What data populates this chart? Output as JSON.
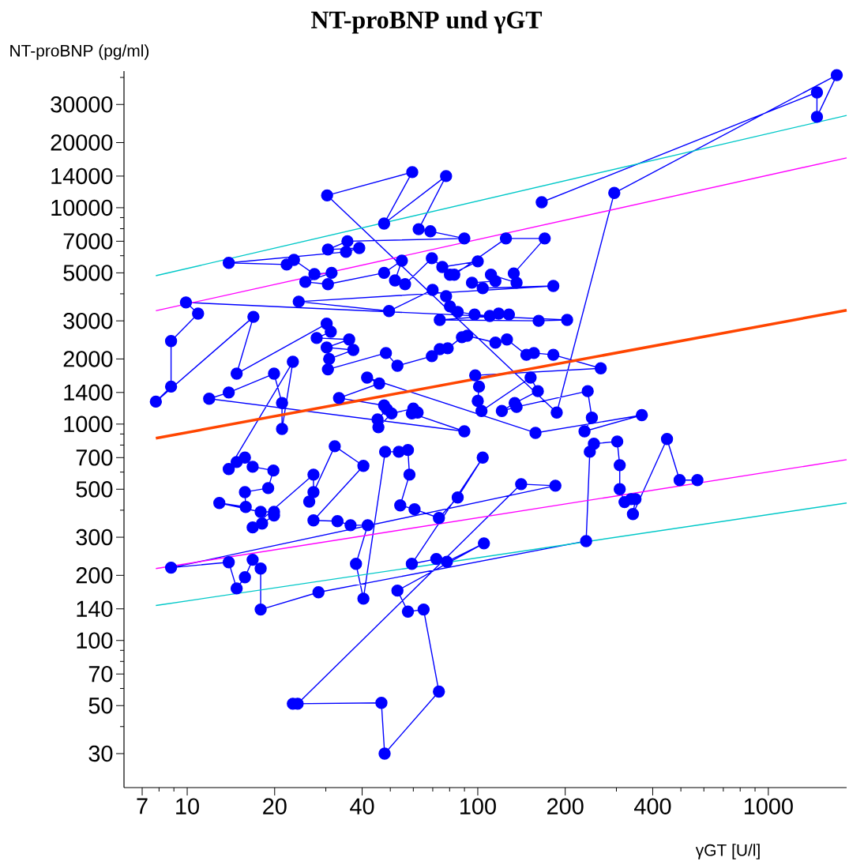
{
  "chart_data": {
    "type": "line",
    "title": "**NT-proBNP und γGT**",
    "xlabel": "γGT [U/l]",
    "ylabel": "NT-proBNP (pg/ml)",
    "log": "xy",
    "xlim": [
      6.06,
      1860
    ],
    "ylim": [
      20.9,
      42800
    ],
    "xticks": [
      7,
      10,
      20,
      40,
      100,
      200,
      400,
      1000
    ],
    "yticks": [
      30,
      50,
      70,
      100,
      140,
      200,
      300,
      500,
      700,
      1000,
      1400,
      2000,
      3000,
      5000,
      7000,
      10000,
      14000,
      20000,
      30000
    ],
    "series": [
      {
        "marker": "circle",
        "color": "#0000ff",
        "x": [
          166,
          1470,
          1470,
          1720,
          295,
          187,
          30.3,
          59.5,
          47.6,
          77.8,
          62.6,
          68.7,
          89.9,
          35.6,
          30.5,
          39.1,
          35.2,
          13.9,
          22.0,
          23.3,
          27.4,
          31.4,
          25.5,
          30.5,
          47.6,
          54.8,
          51.9,
          56.2,
          69.5,
          75.5,
          100,
          80.2,
          83,
          125,
          170,
          133,
          136,
          111,
          115,
          95.5,
          104,
          182,
          24.2,
          49.5,
          69.9,
          77.8,
          80.2,
          85.3,
          97.5,
          110,
          118,
          128,
          74,
          162,
          203,
          9.9,
          10.9,
          8.8,
          8.8,
          7.8,
          16.9,
          14.8,
          30.2,
          31.2,
          27.9,
          36.1,
          30.2,
          37.3,
          30.8,
          30.5,
          48.3,
          52.9,
          69.5,
          74,
          78.8,
          88.2,
          92,
          115,
          126,
          147,
          156,
          182,
          265,
          98,
          101,
          100,
          103,
          152,
          161,
          134,
          121,
          136,
          239,
          247,
          233,
          367,
          158,
          41.6,
          45.8,
          33.3,
          47.6,
          48.7,
          45.2,
          45.5,
          50.5,
          60,
          62.1,
          59.3,
          89.9,
          11.9,
          13.9,
          19.9,
          21.2,
          21.2,
          23.1,
          13.9,
          14.8,
          15.8,
          16.8,
          19.8,
          19.0,
          15.8,
          15.9,
          12.9,
          17.9,
          19.9,
          19.9,
          18.1,
          16.8,
          27.2,
          27.2,
          26.3,
          32.2,
          40.4,
          27.2,
          32.9,
          36.5,
          41.8,
          38.1,
          40.4,
          48,
          53.5,
          57.5,
          58.2,
          54.1,
          60.6,
          73.5,
          85.3,
          104,
          59.3,
          72,
          78.3,
          105,
          52.9,
          57.5,
          65.1,
          73.5,
          47.8,
          46.6,
          23.1,
          24,
          141,
          185,
          8.8,
          13.9,
          14.8,
          15.8,
          16.8,
          17.9,
          17.9,
          28.3,
          236,
          243,
          251,
          302,
          308,
          308,
          320,
          337,
          349,
          342,
          448,
          495,
          570
        ],
        "values": [
          10600,
          34100,
          26300,
          41000,
          11700,
          1130,
          11400,
          14600,
          8450,
          14000,
          7960,
          7780,
          7210,
          7000,
          6410,
          6510,
          6250,
          5560,
          5460,
          5740,
          4930,
          5000,
          4540,
          4430,
          5000,
          5690,
          4610,
          4430,
          5840,
          5320,
          5650,
          4900,
          4900,
          7210,
          7210,
          4970,
          4500,
          4900,
          4580,
          4500,
          4250,
          4350,
          3680,
          3330,
          4170,
          3900,
          3500,
          3300,
          3210,
          3160,
          3240,
          3210,
          3030,
          3000,
          3030,
          3650,
          3240,
          2420,
          1490,
          1270,
          3130,
          1710,
          2910,
          2670,
          2500,
          2460,
          2260,
          2200,
          2000,
          1790,
          2130,
          1860,
          2060,
          2220,
          2240,
          2520,
          2560,
          2380,
          2460,
          2090,
          2130,
          2090,
          1810,
          1680,
          1490,
          1280,
          1150,
          1640,
          1420,
          1250,
          1150,
          1200,
          1420,
          1070,
          926,
          1100,
          911,
          1640,
          1540,
          1320,
          1220,
          1170,
          1050,
          967,
          1120,
          1180,
          1130,
          1120,
          926,
          1310,
          1400,
          1710,
          1250,
          950,
          1940,
          620,
          668,
          700,
          635,
          610,
          506,
          485,
          414,
          432,
          393,
          393,
          378,
          347,
          333,
          584,
          485,
          438,
          790,
          641,
          359,
          356,
          341,
          341,
          226,
          156,
          745,
          745,
          759,
          584,
          421,
          404,
          368,
          458,
          700,
          226,
          238,
          231,
          281,
          170,
          136,
          139,
          58,
          30,
          51.5,
          51,
          51,
          528,
          519,
          217,
          230,
          174,
          196,
          236,
          215,
          139,
          167,
          288,
          745,
          811,
          831,
          646,
          500,
          436,
          450,
          450,
          384,
          853,
          551,
          551
        ]
      },
      {
        "marker": "none",
        "color": "#00c8c8",
        "x": [
          7.8,
          1860
        ],
        "values": [
          4850,
          26700
        ]
      },
      {
        "marker": "none",
        "color": "#ff4500",
        "x": [
          7.8,
          1860
        ],
        "values": [
          860,
          3360
        ]
      },
      {
        "marker": "none",
        "color": "#ff00ff",
        "x": [
          7.8,
          1860
        ],
        "values": [
          3340,
          17000
        ]
      },
      {
        "marker": "none",
        "color": "#ff00ff",
        "x": [
          7.8,
          1860
        ],
        "values": [
          215,
          685
        ]
      },
      {
        "marker": "none",
        "color": "#00c8c8",
        "x": [
          7.8,
          1860
        ],
        "values": [
          145,
          432
        ]
      }
    ]
  }
}
